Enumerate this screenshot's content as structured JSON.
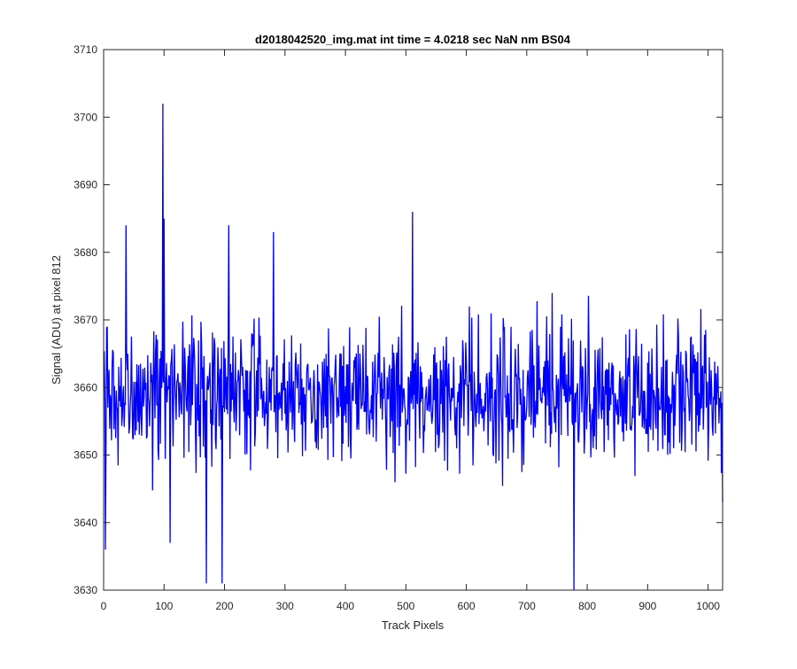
{
  "chart_data": {
    "type": "line",
    "title": "d2018042520_img.mat int time = 4.0218 sec  NaN nm BS04",
    "xlabel": "Track Pixels",
    "ylabel": "Signal (ADU) at pixel 812",
    "xlim": [
      0,
      1024
    ],
    "ylim": [
      3630,
      3710
    ],
    "xticks": [
      "0",
      "100",
      "200",
      "300",
      "400",
      "500",
      "600",
      "700",
      "800",
      "900",
      "1000"
    ],
    "yticks": [
      "3630",
      "3640",
      "3650",
      "3660",
      "3670",
      "3680",
      "3690",
      "3700",
      "3710"
    ],
    "grid": false,
    "line_color": "#0000ff",
    "series": [
      {
        "x_start": 1,
        "x_step": 1,
        "values_note": "1024 noisy samples around ~3659 ADU; notable extremes listed in highlights",
        "highlights": [
          {
            "x": 3,
            "y": 3636
          },
          {
            "x": 37,
            "y": 3684
          },
          {
            "x": 98,
            "y": 3702
          },
          {
            "x": 100,
            "y": 3685
          },
          {
            "x": 110,
            "y": 3637
          },
          {
            "x": 170,
            "y": 3631
          },
          {
            "x": 196,
            "y": 3631
          },
          {
            "x": 207,
            "y": 3684
          },
          {
            "x": 281,
            "y": 3683
          },
          {
            "x": 511,
            "y": 3686
          },
          {
            "x": 778,
            "y": 3630
          }
        ]
      }
    ]
  }
}
